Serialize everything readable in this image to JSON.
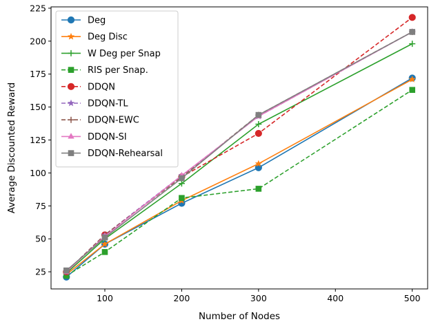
{
  "chart_data": {
    "type": "line",
    "xlabel": "Number of Nodes",
    "ylabel": "Average Discounted Reward",
    "xlim": [
      30,
      520
    ],
    "ylim": [
      12,
      226
    ],
    "xticks": [
      100,
      200,
      300,
      400,
      500
    ],
    "yticks": [
      25,
      50,
      75,
      100,
      125,
      150,
      175,
      200,
      225
    ],
    "grid": false,
    "legend_position": "upper-left",
    "x": [
      50,
      100,
      200,
      300,
      500
    ],
    "series": [
      {
        "name": "Deg",
        "values": [
          21,
          46,
          77,
          104,
          172
        ],
        "color": "#1f77b4",
        "dash": "solid",
        "marker": "circle"
      },
      {
        "name": "Deg Disc",
        "values": [
          23,
          46,
          79,
          107,
          171
        ],
        "color": "#ff7f0e",
        "dash": "solid",
        "marker": "star"
      },
      {
        "name": "W Deg per Snap",
        "values": [
          24,
          50,
          92,
          137,
          198
        ],
        "color": "#2ca02c",
        "dash": "solid",
        "marker": "plus"
      },
      {
        "name": "RIS per Snap.",
        "values": [
          22,
          40,
          81,
          88,
          163
        ],
        "color": "#2ca02c",
        "dash": "dashed",
        "marker": "square"
      },
      {
        "name": "DDQN",
        "values": [
          25,
          53,
          97,
          130,
          218
        ],
        "color": "#d62728",
        "dash": "dashed",
        "marker": "circle"
      },
      {
        "name": "DDQN-TL",
        "values": [
          25,
          53,
          98,
          143,
          207
        ],
        "color": "#9467bd",
        "dash": "dashed",
        "marker": "star"
      },
      {
        "name": "DDQN-EWC",
        "values": [
          25,
          53,
          97,
          144,
          207
        ],
        "color": "#8c564b",
        "dash": "dashed",
        "marker": "plus"
      },
      {
        "name": "DDQN-SI",
        "values": [
          25,
          52,
          98,
          143,
          207
        ],
        "color": "#e377c2",
        "dash": "solid",
        "marker": "triangle"
      },
      {
        "name": "DDQN-Rehearsal",
        "values": [
          26,
          51,
          96,
          144,
          207
        ],
        "color": "#7f7f7f",
        "dash": "solid",
        "marker": "square"
      }
    ]
  }
}
